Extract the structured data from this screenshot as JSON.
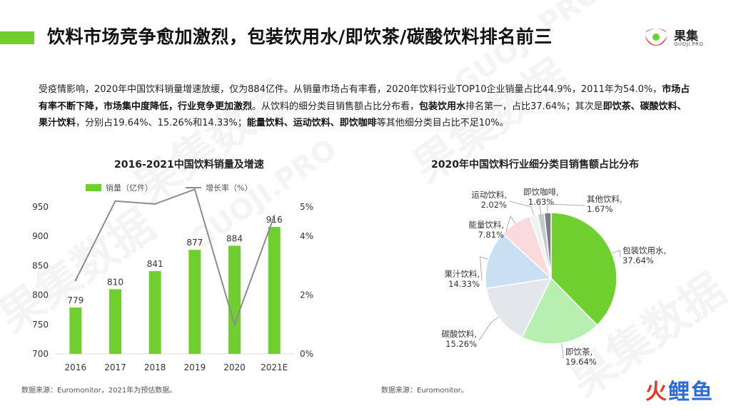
{
  "header": {
    "title": "饮料市场竞争愈加激烈，包装饮用水/即饮茶/碳酸饮料排名前三",
    "logo_cn": "果集",
    "logo_en": "GUOJI.PRO",
    "accent": "#6fcf2f"
  },
  "description": {
    "p1": "受疫情影响，2020年中国饮料销量增速放缓，仅为884亿件。从销量市场占有率看，2020年饮料行业TOP10企业销量占比44.9%，2011年为54.0%，",
    "b1": "市场占有率不断下降，市场集中度降低，行业竞争更加激烈",
    "p2": "。从饮料的细分类目销售额占比分布看，",
    "b2": "包装饮用水",
    "p3": "排名第一，占比37.64%；其次是",
    "b3": "即饮茶、碳酸饮料、果汁饮料",
    "p4": "，分别占19.64%、15.26%和14.33%；",
    "b4": "能量饮料、运动饮料、即饮咖啡",
    "p5": "等其他细分类目占比不足10%。"
  },
  "chart_data": [
    {
      "type": "bar",
      "title": "2016-2021中国饮料销量及增速",
      "categories": [
        "2016",
        "2017",
        "2018",
        "2019",
        "2020",
        "2021E"
      ],
      "series": [
        {
          "name": "销量（亿件）",
          "type": "bar",
          "axis": "left",
          "color": "#6fcf2f",
          "values": [
            779,
            810,
            841,
            877,
            884,
            916
          ]
        },
        {
          "name": "增长率（%）",
          "type": "line",
          "axis": "right",
          "color": "#8c8c8c",
          "values": [
            2.5,
            5.2,
            5.1,
            5.6,
            1.0,
            4.7
          ]
        }
      ],
      "ylim_left": [
        700,
        950
      ],
      "yticks_left": [
        "950",
        "900",
        "850",
        "800",
        "750",
        "700"
      ],
      "ylim_right": [
        0,
        5
      ],
      "yticks_right": [
        "5%",
        "4%",
        "2%",
        "0%"
      ],
      "legend": "top",
      "grid": false
    },
    {
      "type": "pie",
      "title": "2020年中国饮料行业细分类目销售额占比分布",
      "labels": [
        "包装饮用水",
        "即饮茶",
        "碳酸饮料",
        "果汁饮料",
        "能量饮料",
        "运动饮料",
        "即饮咖啡",
        "其他饮料"
      ],
      "values": [
        37.64,
        19.64,
        15.26,
        14.33,
        7.81,
        2.02,
        1.63,
        1.67
      ],
      "value_labels": [
        "37.64%",
        "19.64%",
        "15.26%",
        "14.33%",
        "7.81%",
        "2.02%",
        "1.63%",
        "1.67%"
      ],
      "colors": [
        "#6fcf2f",
        "#b6efb0",
        "#e3e6ea",
        "#c9dff2",
        "#fadadd",
        "#f1f2f4",
        "#c4c9cf",
        "#7b7f85"
      ]
    }
  ],
  "sources": {
    "left": "数据来源：Euromonitor，2021年为预估数据。",
    "right": "数据来源：Euromonitor。"
  },
  "watermark": {
    "cn": "果集数据",
    "en": "GUOJI.PRO"
  },
  "corner_brand": {
    "a": "火",
    "b": "鲤鱼"
  }
}
